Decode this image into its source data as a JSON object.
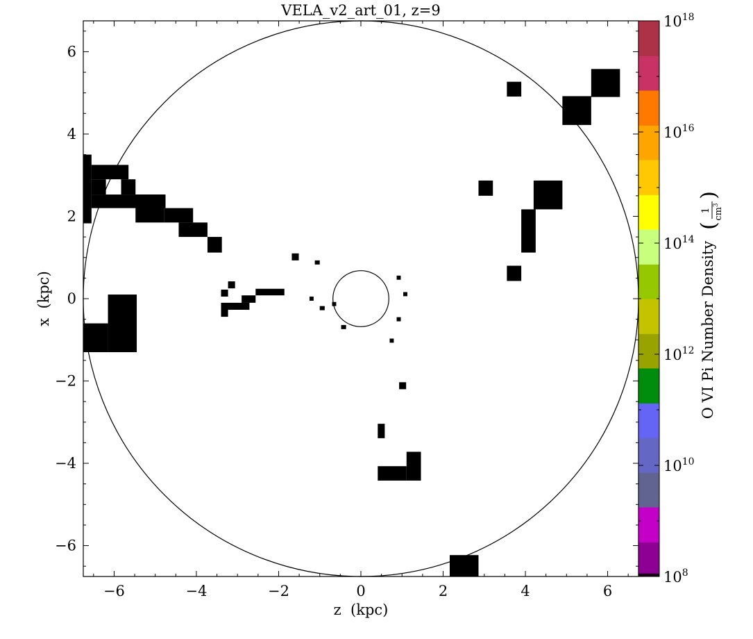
{
  "chart_data": {
    "type": "heatmap",
    "title": "VELA_v2_art_01, z=9",
    "xlabel": "z  (kpc)",
    "ylabel": "x  (kpc)",
    "xlim": [
      -6.75,
      6.75
    ],
    "ylim": [
      -6.75,
      6.75
    ],
    "xticks": [
      {
        "value": -6,
        "label": "−6"
      },
      {
        "value": -4,
        "label": "−4"
      },
      {
        "value": -2,
        "label": "−2"
      },
      {
        "value": 0,
        "label": "0"
      },
      {
        "value": 2,
        "label": "2"
      },
      {
        "value": 4,
        "label": "4"
      },
      {
        "value": 6,
        "label": "6"
      }
    ],
    "yticks": [
      {
        "value": -6,
        "label": "−6"
      },
      {
        "value": -4,
        "label": "−4"
      },
      {
        "value": -2,
        "label": "−2"
      },
      {
        "value": 0,
        "label": "0"
      },
      {
        "value": 2,
        "label": "2"
      },
      {
        "value": 4,
        "label": "4"
      },
      {
        "value": 6,
        "label": "6"
      }
    ],
    "circles": [
      {
        "center": [
          0,
          0
        ],
        "radius": 6.75
      },
      {
        "center": [
          0,
          0
        ],
        "radius": 0.68
      }
    ],
    "cells_color": "#000000",
    "cells": [
      [
        -6.75,
        1.83,
        0.2,
        1.67
      ],
      [
        -6.55,
        2.9,
        0.9,
        0.35
      ],
      [
        -6.55,
        2.53,
        0.35,
        0.37
      ],
      [
        -6.55,
        2.2,
        1.8,
        0.33
      ],
      [
        -5.83,
        2.53,
        0.35,
        0.37
      ],
      [
        -5.48,
        1.85,
        0.7,
        0.68
      ],
      [
        -4.78,
        1.85,
        0.7,
        0.35
      ],
      [
        -4.43,
        1.5,
        0.7,
        0.35
      ],
      [
        -3.73,
        1.12,
        0.35,
        0.38
      ],
      [
        -1.68,
        0.93,
        0.17,
        0.17
      ],
      [
        -1.12,
        0.83,
        0.12,
        0.1
      ],
      [
        -3.23,
        0.25,
        0.17,
        0.17
      ],
      [
        -3.4,
        0.05,
        0.17,
        0.17
      ],
      [
        -2.56,
        0.08,
        0.7,
        0.16
      ],
      [
        -2.9,
        -0.1,
        0.34,
        0.18
      ],
      [
        -3.4,
        -0.27,
        0.69,
        0.17
      ],
      [
        -3.4,
        -0.44,
        0.17,
        0.17
      ],
      [
        -1.25,
        -0.05,
        0.1,
        0.1
      ],
      [
        -1.0,
        -0.28,
        0.12,
        0.1
      ],
      [
        -0.7,
        -0.18,
        0.1,
        0.1
      ],
      [
        -0.48,
        -0.74,
        0.12,
        0.1
      ],
      [
        0.87,
        0.46,
        0.1,
        0.1
      ],
      [
        1.03,
        0.06,
        0.1,
        0.1
      ],
      [
        0.87,
        -0.55,
        0.1,
        0.1
      ],
      [
        0.7,
        -1.07,
        0.1,
        0.1
      ],
      [
        0.93,
        -2.2,
        0.17,
        0.17
      ],
      [
        0.41,
        -3.39,
        0.17,
        0.35
      ],
      [
        -6.75,
        -1.3,
        0.6,
        0.7
      ],
      [
        -6.15,
        -1.3,
        0.7,
        1.4
      ],
      [
        0.41,
        -4.42,
        0.7,
        0.35
      ],
      [
        1.11,
        -4.42,
        0.35,
        0.7
      ],
      [
        2.16,
        -6.75,
        0.7,
        0.52
      ],
      [
        3.55,
        4.91,
        0.35,
        0.36
      ],
      [
        5.6,
        4.9,
        0.7,
        0.68
      ],
      [
        4.9,
        4.22,
        0.7,
        0.7
      ],
      [
        2.86,
        2.5,
        0.35,
        0.37
      ],
      [
        4.2,
        2.17,
        0.7,
        0.7
      ],
      [
        3.9,
        1.12,
        0.35,
        1.05
      ],
      [
        3.55,
        0.43,
        0.35,
        0.37
      ]
    ],
    "colorbar": {
      "label": "O VI Pi Number Density",
      "unit_numerator": "1",
      "unit_denominator": "cm",
      "unit_exponent": "3",
      "scale": "log",
      "range": [
        8,
        18
      ],
      "tick_base": "10",
      "ticks": [
        {
          "value": 8,
          "exp": "8"
        },
        {
          "value": 10,
          "exp": "10"
        },
        {
          "value": 12,
          "exp": "12"
        },
        {
          "value": 14,
          "exp": "14"
        },
        {
          "value": 16,
          "exp": "16"
        },
        {
          "value": 18,
          "exp": "18"
        }
      ],
      "bands": [
        {
          "from": 8.0,
          "to": 8.06,
          "color": "#1a001a"
        },
        {
          "from": 8.06,
          "to": 8.62,
          "color": "#8e0094"
        },
        {
          "from": 8.62,
          "to": 9.25,
          "color": "#c400c8"
        },
        {
          "from": 9.25,
          "to": 9.87,
          "color": "#616391"
        },
        {
          "from": 9.87,
          "to": 10.5,
          "color": "#6468c4"
        },
        {
          "from": 10.5,
          "to": 11.12,
          "color": "#6565f5"
        },
        {
          "from": 11.12,
          "to": 11.75,
          "color": "#008c0c"
        },
        {
          "from": 11.75,
          "to": 12.37,
          "color": "#99a300"
        },
        {
          "from": 12.37,
          "to": 13.0,
          "color": "#c3c300"
        },
        {
          "from": 13.0,
          "to": 13.62,
          "color": "#95c800"
        },
        {
          "from": 13.62,
          "to": 14.25,
          "color": "#c8ff7d"
        },
        {
          "from": 14.25,
          "to": 14.87,
          "color": "#ffff00"
        },
        {
          "from": 14.87,
          "to": 15.5,
          "color": "#ffc800"
        },
        {
          "from": 15.5,
          "to": 16.12,
          "color": "#ffa500"
        },
        {
          "from": 16.12,
          "to": 16.75,
          "color": "#ff7900"
        },
        {
          "from": 16.75,
          "to": 17.37,
          "color": "#c83264"
        },
        {
          "from": 17.37,
          "to": 18.0,
          "color": "#ad3248"
        }
      ]
    }
  }
}
